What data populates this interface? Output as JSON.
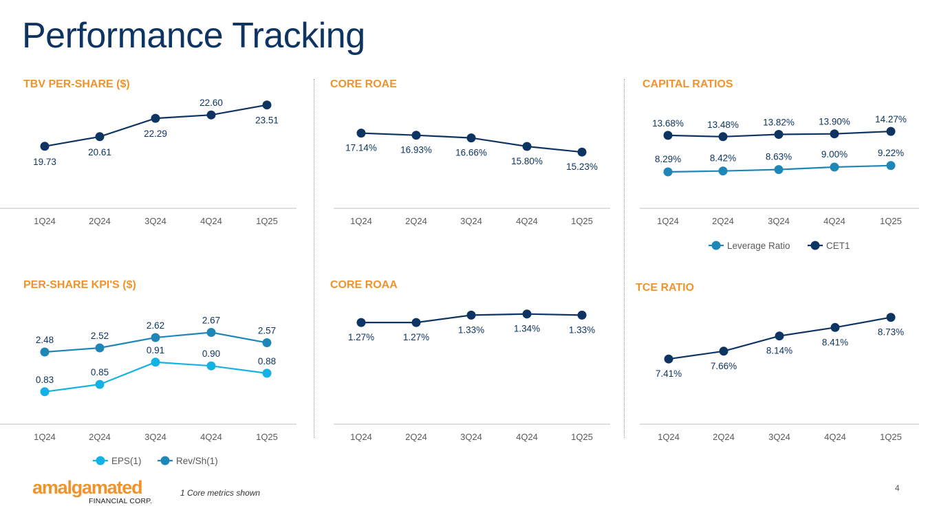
{
  "page": {
    "title": "Performance Tracking",
    "footnote": "1 Core metrics shown",
    "page_number": "4",
    "logo": {
      "word": "amalgamated",
      "sub": "FINANCIAL CORP."
    }
  },
  "colors": {
    "navy": "#0e3461",
    "medium": "#1f87b8",
    "light": "#12b2e4",
    "orange": "#f0932b"
  },
  "chart_data": [
    {
      "id": "tbv",
      "title": "TBV PER-SHARE ($)",
      "type": "line",
      "categories": [
        "1Q24",
        "2Q24",
        "3Q24",
        "4Q24",
        "1Q25"
      ],
      "series": [
        {
          "name": "TBV per share",
          "values": [
            19.73,
            20.61,
            22.29,
            22.6,
            23.51
          ],
          "labels": [
            "19.73",
            "20.61",
            "22.29",
            "22.60",
            "23.51"
          ],
          "color": "#0e3461"
        }
      ],
      "ylim": [
        14,
        25
      ]
    },
    {
      "id": "roae",
      "title": "CORE ROAE",
      "type": "line",
      "categories": [
        "1Q24",
        "2Q24",
        "3Q24",
        "4Q24",
        "1Q25"
      ],
      "series": [
        {
          "name": "Core ROAE",
          "values": [
            17.14,
            16.93,
            16.66,
            15.8,
            15.23
          ],
          "labels": [
            "17.14%",
            "16.93%",
            "16.66%",
            "15.80%",
            "15.23%"
          ],
          "color": "#0e3461"
        }
      ],
      "ylim": [
        9.5,
        18.5
      ]
    },
    {
      "id": "capital",
      "title": "CAPITAL RATIOS",
      "type": "line",
      "categories": [
        "1Q24",
        "2Q24",
        "3Q24",
        "4Q24",
        "1Q25"
      ],
      "series": [
        {
          "name": "Leverage Ratio",
          "values": [
            8.29,
            8.42,
            8.63,
            9.0,
            9.22
          ],
          "labels": [
            "8.29%",
            "8.42%",
            "8.63%",
            "9.00%",
            "9.22%"
          ],
          "color": "#1f87b8"
        },
        {
          "name": "CET1",
          "values": [
            13.68,
            13.48,
            13.82,
            13.9,
            14.27
          ],
          "labels": [
            "13.68%",
            "13.48%",
            "13.82%",
            "13.90%",
            "14.27%"
          ],
          "color": "#0e3461"
        }
      ],
      "legend": [
        "Leverage Ratio",
        "CET1"
      ],
      "ylim": [
        2,
        16
      ]
    },
    {
      "id": "kpi",
      "title": "PER-SHARE KPI'S ($)",
      "type": "line",
      "categories": [
        "1Q24",
        "2Q24",
        "3Q24",
        "4Q24",
        "1Q25"
      ],
      "series": [
        {
          "name": "EPS(1)",
          "values": [
            0.83,
            0.85,
            0.91,
            0.9,
            0.88
          ],
          "labels": [
            "0.83",
            "0.85",
            "0.91",
            "0.90",
            "0.88"
          ],
          "color": "#12b2e4"
        },
        {
          "name": "Rev/Sh(1)",
          "values": [
            2.48,
            2.52,
            2.62,
            2.67,
            2.57
          ],
          "labels": [
            "2.48",
            "2.52",
            "2.62",
            "2.67",
            "2.57"
          ],
          "color": "#1f87b8"
        }
      ],
      "legend": [
        "EPS(1)",
        "Rev/Sh(1)"
      ],
      "note": "scale_break_between_series"
    },
    {
      "id": "roaa",
      "title": "CORE ROAA",
      "type": "line",
      "categories": [
        "1Q24",
        "2Q24",
        "3Q24",
        "4Q24",
        "1Q25"
      ],
      "series": [
        {
          "name": "Core ROAA",
          "values": [
            1.27,
            1.27,
            1.33,
            1.34,
            1.33
          ],
          "labels": [
            "1.27%",
            "1.27%",
            "1.33%",
            "1.34%",
            "1.33%"
          ],
          "color": "#0e3461"
        }
      ],
      "ylim": [
        0.5,
        1.4
      ]
    },
    {
      "id": "tce",
      "title": "TCE RATIO",
      "type": "line",
      "categories": [
        "1Q24",
        "2Q24",
        "3Q24",
        "4Q24",
        "1Q25"
      ],
      "series": [
        {
          "name": "TCE Ratio",
          "values": [
            7.41,
            7.66,
            8.14,
            8.41,
            8.73
          ],
          "labels": [
            "7.41%",
            "7.66%",
            "8.14%",
            "8.41%",
            "8.73%"
          ],
          "color": "#0e3461"
        }
      ],
      "ylim": [
        5.5,
        9.2
      ]
    }
  ]
}
